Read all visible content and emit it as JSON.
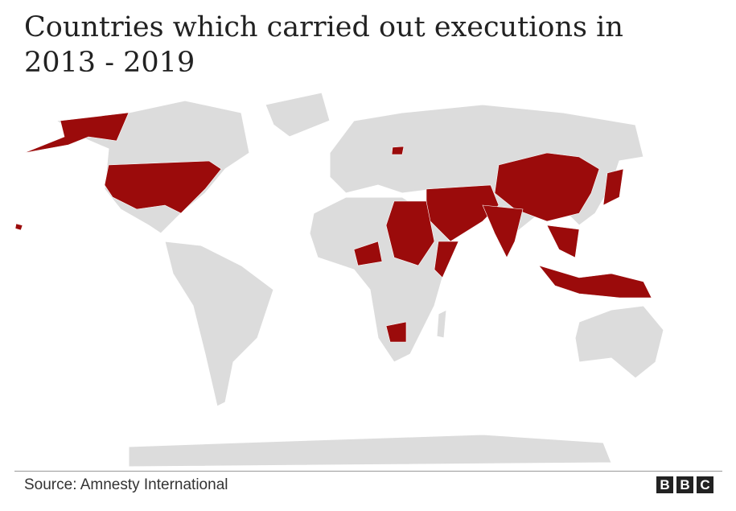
{
  "title": "Countries which carried out executions in 2013 - 2019",
  "source": "Source: Amnesty International",
  "logo": [
    "B",
    "B",
    "C"
  ]
}
